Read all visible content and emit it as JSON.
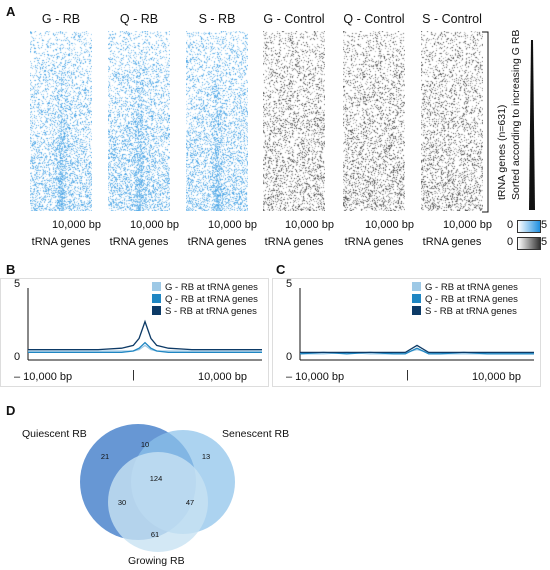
{
  "panels": {
    "a": "A",
    "b": "B",
    "c": "C",
    "d": "D"
  },
  "heatmaps": [
    {
      "title": "G - RB",
      "kind": "rb"
    },
    {
      "title": "Q - RB",
      "kind": "rb"
    },
    {
      "title": "S - RB",
      "kind": "rb"
    },
    {
      "title": "G - Control",
      "kind": "control"
    },
    {
      "title": "Q - Control",
      "kind": "control"
    },
    {
      "title": "S - Control",
      "kind": "control"
    }
  ],
  "heatmap_xtick": "10,000 bp",
  "heatmap_xlabel": "tRNA genes",
  "side_label_1": "tRNA genes (n=631)",
  "side_label_2": "Sorted according to increasing G RB",
  "color_scales": [
    {
      "min": "0",
      "max": "5",
      "color": "#1e8fe0"
    },
    {
      "min": "0",
      "max": "5",
      "color": "#333333"
    }
  ],
  "colors": {
    "g": "#9ec9e6",
    "q": "#1f86c2",
    "s": "#0d3a66",
    "blue_hm": "#1e8fe0",
    "gray_hm": "#222222"
  },
  "profile_b": {
    "ytick_max": "5",
    "ytick_min": "0",
    "xtick_left": "– 10,000 bp",
    "xtick_mid": "|",
    "xtick_right": "10,000 bp",
    "legend": [
      "G - RB at tRNA genes",
      "Q - RB at tRNA genes",
      "S - RB at tRNA genes"
    ]
  },
  "profile_c": {
    "ytick_max": "5",
    "ytick_min": "0",
    "xtick_left": "– 10,000 bp",
    "xtick_mid": "|",
    "xtick_right": "10,000 bp",
    "legend": [
      "G - RB at tRNA genes",
      "Q - RB at tRNA genes",
      "S - RB at tRNA genes"
    ]
  },
  "chart_data": [
    {
      "type": "line",
      "panel": "B",
      "x": [
        -10000,
        -8000,
        -6000,
        -4000,
        -2000,
        -1000,
        -500,
        0,
        500,
        1000,
        2000,
        4000,
        6000,
        8000,
        10000
      ],
      "ylim": [
        0,
        5
      ],
      "series": [
        {
          "name": "G - RB at tRNA genes",
          "values": [
            0.5,
            0.5,
            0.5,
            0.5,
            0.5,
            0.5,
            0.6,
            0.9,
            0.6,
            0.5,
            0.5,
            0.5,
            0.5,
            0.5,
            0.5
          ]
        },
        {
          "name": "Q - RB at tRNA genes",
          "values": [
            0.4,
            0.4,
            0.4,
            0.4,
            0.4,
            0.5,
            0.7,
            1.1,
            0.7,
            0.5,
            0.4,
            0.4,
            0.4,
            0.4,
            0.4
          ]
        },
        {
          "name": "S - RB at tRNA genes",
          "values": [
            0.6,
            0.6,
            0.6,
            0.6,
            0.7,
            0.9,
            1.4,
            2.6,
            1.4,
            0.9,
            0.7,
            0.6,
            0.6,
            0.6,
            0.6
          ]
        }
      ],
      "xticks": [
        "– 10,000 bp",
        "|",
        "10,000 bp"
      ]
    },
    {
      "type": "line",
      "panel": "C",
      "x": [
        -10000,
        -8000,
        -6000,
        -4000,
        -2000,
        -1000,
        0,
        1000,
        2000,
        4000,
        6000,
        8000,
        10000
      ],
      "ylim": [
        0,
        5
      ],
      "series": [
        {
          "name": "G - RB at tRNA genes",
          "values": [
            0.3,
            0.3,
            0.4,
            0.3,
            0.3,
            0.4,
            0.6,
            0.4,
            0.3,
            0.3,
            0.3,
            0.3,
            0.3
          ]
        },
        {
          "name": "Q - RB at tRNA genes",
          "values": [
            0.3,
            0.4,
            0.3,
            0.4,
            0.3,
            0.3,
            0.7,
            0.3,
            0.3,
            0.4,
            0.3,
            0.3,
            0.3
          ]
        },
        {
          "name": "S - RB at tRNA genes",
          "values": [
            0.4,
            0.4,
            0.4,
            0.4,
            0.4,
            0.4,
            0.9,
            0.4,
            0.4,
            0.4,
            0.4,
            0.4,
            0.4
          ]
        }
      ],
      "xticks": [
        "– 10,000 bp",
        "|",
        "10,000 bp"
      ]
    }
  ],
  "venn": {
    "labels": {
      "quiescent": "Quiescent RB",
      "senescent": "Senescent RB",
      "growing": "Growing RB"
    },
    "counts": {
      "q_only": "21",
      "qs": "10",
      "s_only": "13",
      "all": "124",
      "qg": "30",
      "sg": "47",
      "g_only": "61"
    },
    "colors": {
      "quiescent": "#2d6fc4",
      "senescent": "#8cc2ea",
      "growing": "#c8e2f2"
    }
  }
}
